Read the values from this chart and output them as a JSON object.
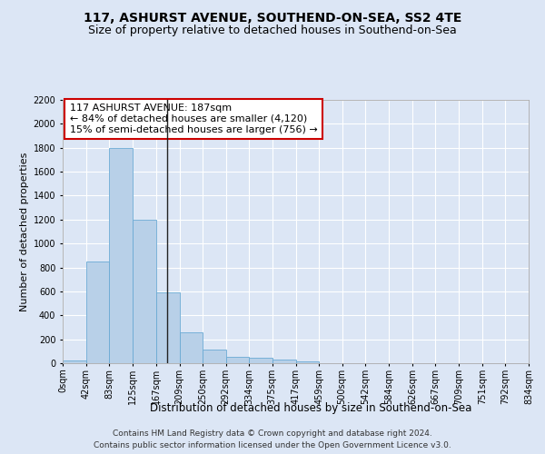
{
  "title1": "117, ASHURST AVENUE, SOUTHEND-ON-SEA, SS2 4TE",
  "title2": "Size of property relative to detached houses in Southend-on-Sea",
  "xlabel": "Distribution of detached houses by size in Southend-on-Sea",
  "ylabel": "Number of detached properties",
  "footnote1": "Contains HM Land Registry data © Crown copyright and database right 2024.",
  "footnote2": "Contains public sector information licensed under the Open Government Licence v3.0.",
  "annotation_line1": "117 ASHURST AVENUE: 187sqm",
  "annotation_line2": "← 84% of detached houses are smaller (4,120)",
  "annotation_line3": "15% of semi-detached houses are larger (756) →",
  "bar_edges": [
    0,
    42,
    83,
    125,
    167,
    209,
    250,
    292,
    334,
    375,
    417,
    459,
    500,
    542,
    584,
    626,
    667,
    709,
    751,
    792,
    834
  ],
  "bar_heights": [
    25,
    850,
    1800,
    1200,
    590,
    260,
    115,
    50,
    45,
    30,
    15,
    0,
    0,
    0,
    0,
    0,
    0,
    0,
    0,
    0
  ],
  "bar_color": "#b8d0e8",
  "bar_edge_color": "#6aaad4",
  "vline_x": 187,
  "vline_color": "#222222",
  "ylim": [
    0,
    2200
  ],
  "xlim": [
    0,
    834
  ],
  "bg_color": "#dce6f5",
  "plot_bg_color": "#dce6f5",
  "grid_color": "#ffffff",
  "annotation_box_color": "#ffffff",
  "annotation_box_edge": "#cc0000",
  "title1_fontsize": 10,
  "title2_fontsize": 9,
  "ylabel_fontsize": 8,
  "xlabel_fontsize": 8.5,
  "tick_fontsize": 7,
  "annotation_fontsize": 8,
  "footnote_fontsize": 6.5,
  "yticks": [
    0,
    200,
    400,
    600,
    800,
    1000,
    1200,
    1400,
    1600,
    1800,
    2000,
    2200
  ]
}
